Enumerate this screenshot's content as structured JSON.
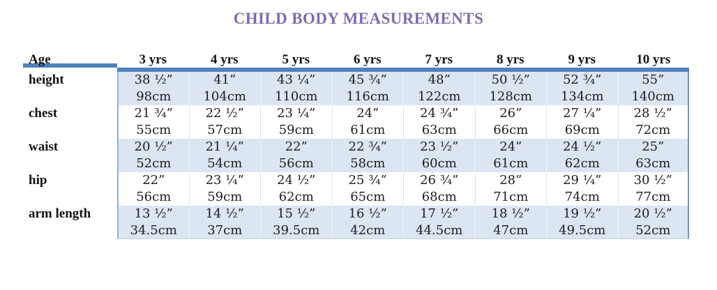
{
  "title": "CHILD BODY MEASUREMENTS",
  "table": {
    "corner_label": "Age",
    "age_headers": [
      "3 yrs",
      "4 yrs",
      "5 yrs",
      "6 yrs",
      "7 yrs",
      "8 yrs",
      "9 yrs",
      "10 yrs"
    ],
    "rows": [
      {
        "label": "height",
        "inches": [
          "38 ½”",
          "41”",
          "43 ¼”",
          "45 ¾”",
          "48”",
          "50 ½”",
          "52 ¾”",
          "55”"
        ],
        "cm": [
          "98cm",
          "104cm",
          "110cm",
          "116cm",
          "122cm",
          "128cm",
          "134cm",
          "140cm"
        ]
      },
      {
        "label": "chest",
        "inches": [
          "21 ¾”",
          "22 ½”",
          "23 ¼”",
          "24”",
          "24 ¾”",
          "26”",
          "27 ¼”",
          "28 ½”"
        ],
        "cm": [
          "55cm",
          "57cm",
          "59cm",
          "61cm",
          "63cm",
          "66cm",
          "69cm",
          "72cm"
        ]
      },
      {
        "label": "waist",
        "inches": [
          "20 ½”",
          "21 ¼”",
          "22”",
          "22 ¾”",
          "23 ½”",
          "24”",
          "24 ½”",
          "25”"
        ],
        "cm": [
          "52cm",
          "54cm",
          "56cm",
          "58cm",
          "60cm",
          "61cm",
          "62cm",
          "63cm"
        ]
      },
      {
        "label": "hip",
        "inches": [
          "22”",
          "23 ¼”",
          "24 ½”",
          "25 ¾”",
          "26 ¾”",
          "28”",
          "29 ¼”",
          "30 ½”"
        ],
        "cm": [
          "56cm",
          "59cm",
          "62cm",
          "65cm",
          "68cm",
          "71cm",
          "74cm",
          "77cm"
        ]
      },
      {
        "label": "arm length",
        "inches": [
          "13 ½”",
          "14 ½”",
          "15 ½”",
          "16 ½”",
          "17 ½”",
          "18 ½”",
          "19 ½”",
          "20 ½”"
        ],
        "cm": [
          "34.5cm",
          "37cm",
          "39.5cm",
          "42cm",
          "44.5cm",
          "47cm",
          "49.5cm",
          "52cm"
        ]
      }
    ]
  },
  "colors": {
    "title_purple": "#7d6cb0",
    "header_band_blue": "#4f81bd",
    "shaded_row_blue": "#dce6f2",
    "text": "#1c1c1c"
  }
}
